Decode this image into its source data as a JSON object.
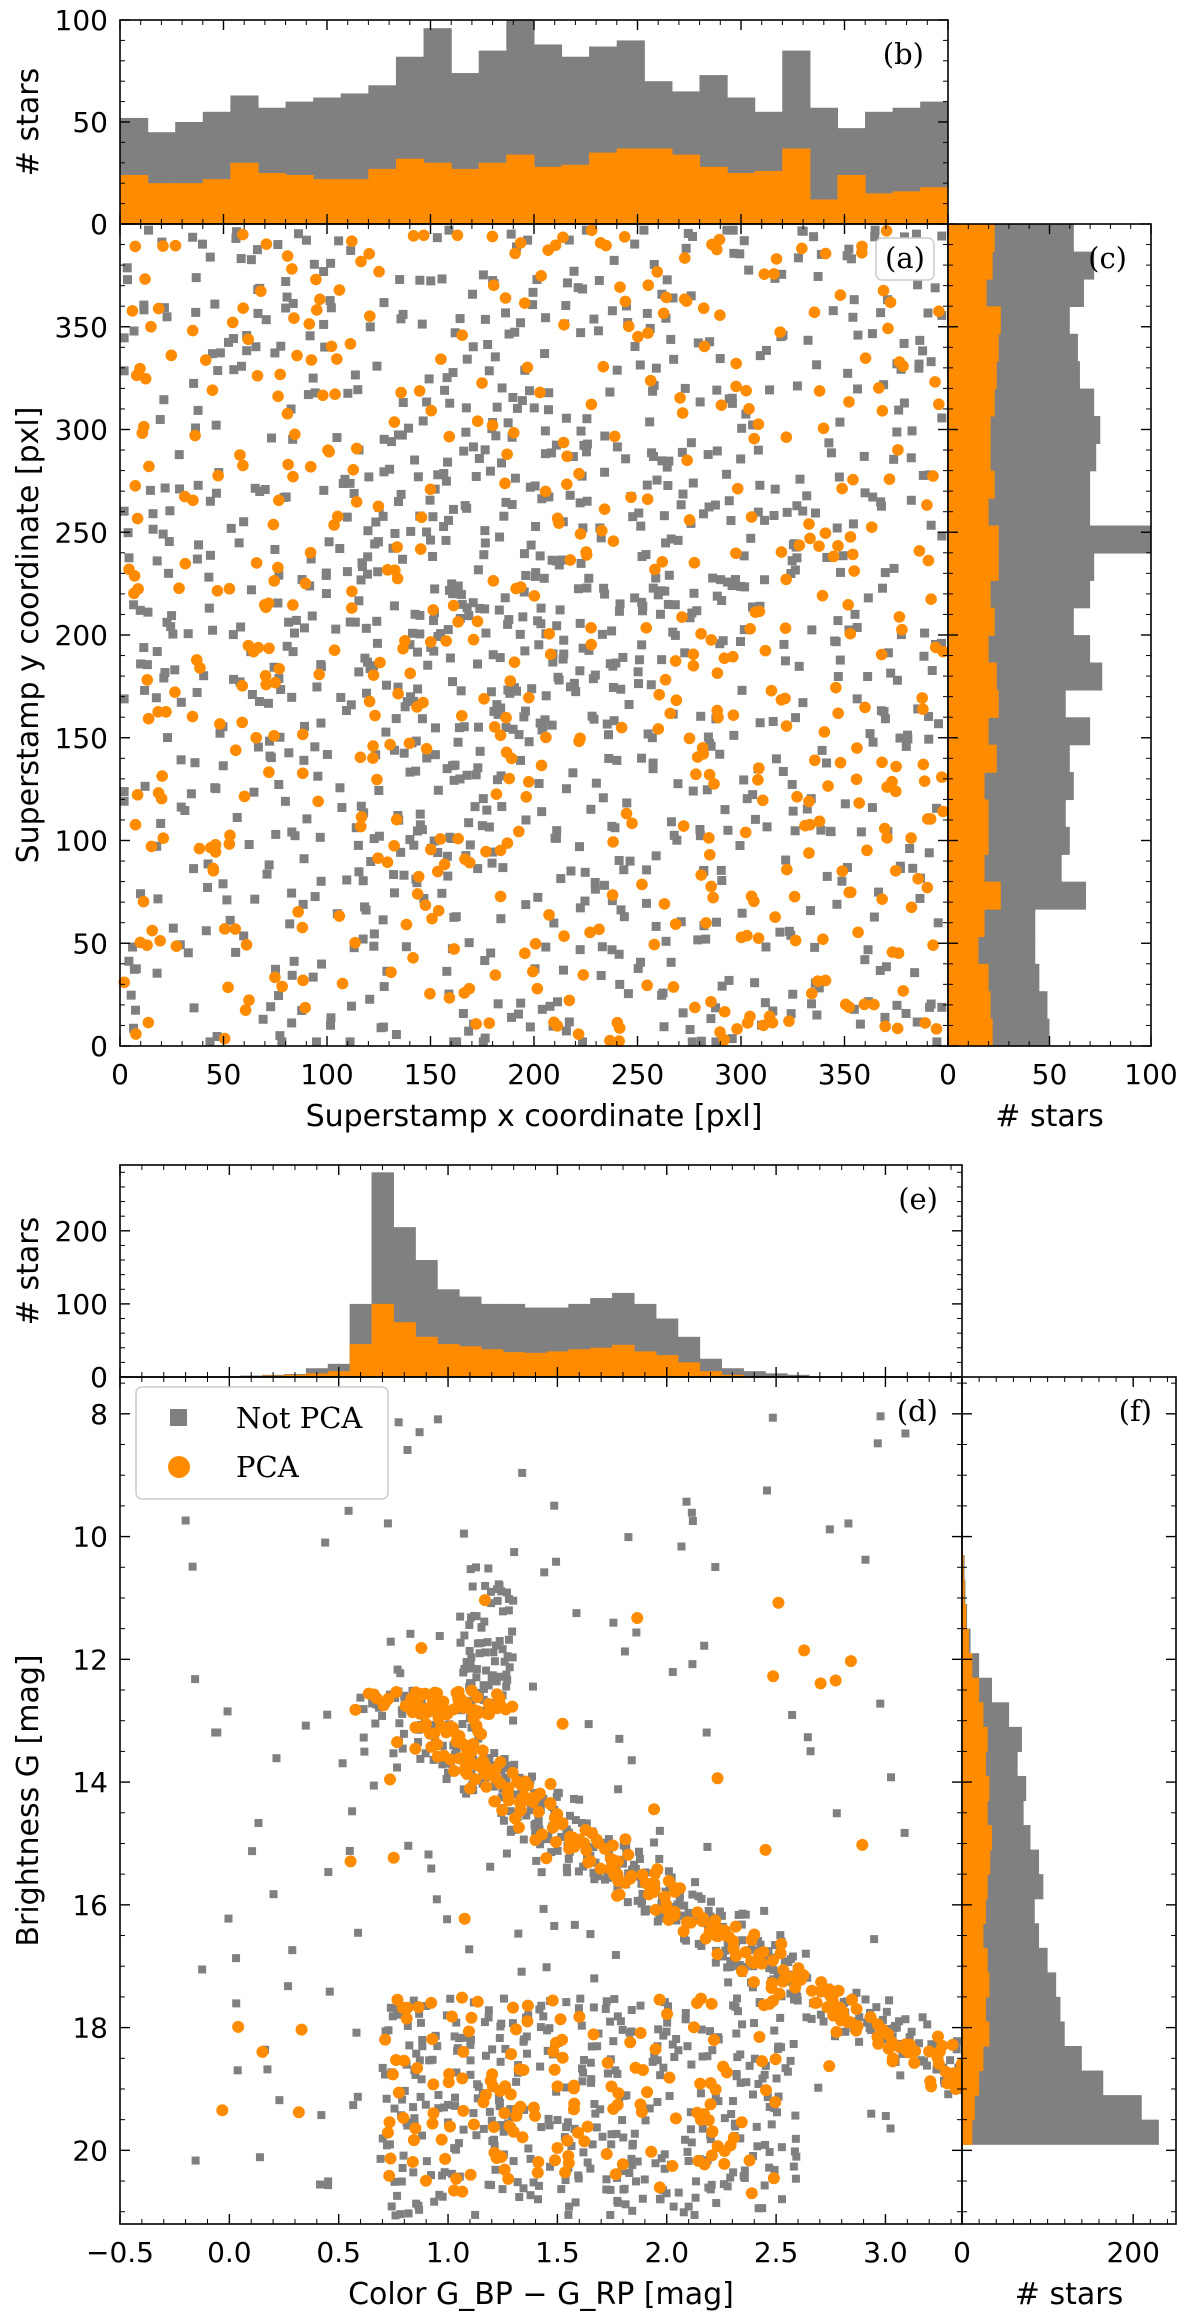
{
  "colors": {
    "not_pca": "#808080",
    "pca": "#ff8c00",
    "axis": "#000000",
    "legend_box": "#cccccc"
  },
  "legend": {
    "items": [
      "Not PCA",
      "PCA"
    ]
  },
  "chart_data": [
    {
      "id": "a",
      "panel_label": "(a)",
      "type": "scatter",
      "xlabel": "Superstamp x coordinate [pxl]",
      "ylabel": "Superstamp y coordinate [pxl]",
      "xlim": [
        0,
        400
      ],
      "ylim": [
        0,
        400
      ],
      "xticks": [
        "0",
        "50",
        "100",
        "150",
        "200",
        "250",
        "300",
        "350"
      ],
      "yticks": [
        "0",
        "50",
        "100",
        "150",
        "200",
        "250",
        "300",
        "350"
      ],
      "series": [
        {
          "name": "Not PCA",
          "marker": "square",
          "count": 1117
        },
        {
          "name": "PCA",
          "marker": "circle",
          "count": 545
        }
      ]
    },
    {
      "id": "b",
      "panel_label": "(b)",
      "type": "histogram",
      "orientation": "vertical",
      "shared_axis": "x of (a)",
      "ylabel": "# stars",
      "ylim": [
        0,
        100
      ],
      "yticks": [
        "0",
        "50",
        "100"
      ],
      "bin_edges_start": 0,
      "bin_width": 13.33,
      "series": [
        {
          "name": "Not PCA",
          "values": [
            52,
            45,
            50,
            55,
            63,
            57,
            60,
            62,
            64,
            68,
            82,
            96,
            74,
            85,
            100,
            88,
            82,
            87,
            90,
            70,
            65,
            73,
            62,
            55,
            85,
            57,
            47,
            55,
            57,
            60
          ]
        },
        {
          "name": "PCA",
          "values": [
            24,
            20,
            20,
            22,
            30,
            25,
            24,
            22,
            22,
            27,
            32,
            30,
            27,
            30,
            34,
            28,
            29,
            35,
            37,
            37,
            34,
            28,
            25,
            26,
            37,
            12,
            24,
            15,
            16,
            18
          ]
        }
      ]
    },
    {
      "id": "c",
      "panel_label": "(c)",
      "type": "histogram",
      "orientation": "horizontal",
      "shared_axis": "y of (a)",
      "xlabel": "# stars",
      "xlim": [
        0,
        100
      ],
      "xticks": [
        "0",
        "50",
        "100"
      ],
      "bin_edges_start": 0,
      "bin_width": 13.33,
      "series": [
        {
          "name": "Not PCA",
          "values": [
            50,
            49,
            45,
            43,
            43,
            68,
            56,
            60,
            58,
            62,
            60,
            70,
            58,
            76,
            70,
            62,
            70,
            72,
            100,
            70,
            70,
            73,
            75,
            72,
            65,
            64,
            60,
            67,
            72,
            62
          ]
        },
        {
          "name": "PCA",
          "values": [
            22,
            21,
            20,
            15,
            18,
            26,
            18,
            20,
            20,
            18,
            24,
            20,
            25,
            24,
            20,
            23,
            21,
            25,
            25,
            20,
            23,
            21,
            21,
            23,
            24,
            25,
            26,
            19,
            22,
            23
          ]
        }
      ]
    },
    {
      "id": "d",
      "panel_label": "(d)",
      "type": "scatter",
      "xlabel": "Color G_BP − G_RP [mag]",
      "ylabel": "Brightness G [mag]",
      "xlim": [
        -0.5,
        3.35
      ],
      "ylim": [
        21.2,
        7.4
      ],
      "xticks": [
        "−0.5",
        "0.0",
        "0.5",
        "1.0",
        "1.5",
        "2.0",
        "2.5",
        "3.0"
      ],
      "yticks": [
        "8",
        "10",
        "12",
        "14",
        "16",
        "18",
        "20"
      ],
      "series": [
        {
          "name": "Not PCA",
          "marker": "square",
          "count": 1117
        },
        {
          "name": "PCA",
          "marker": "circle",
          "count": 545
        }
      ]
    },
    {
      "id": "e",
      "panel_label": "(e)",
      "type": "histogram",
      "orientation": "vertical",
      "shared_axis": "x of (d)",
      "ylabel": "# stars",
      "ylim": [
        0,
        290
      ],
      "yticks": [
        "0",
        "100",
        "200"
      ],
      "bin_edges_start": -0.15,
      "bin_width": 0.1,
      "series": [
        {
          "name": "Not PCA",
          "values": [
            1,
            1,
            2,
            3,
            4,
            12,
            18,
            100,
            280,
            205,
            160,
            120,
            110,
            100,
            100,
            95,
            95,
            100,
            108,
            115,
            100,
            80,
            55,
            25,
            12,
            8,
            5,
            3
          ]
        },
        {
          "name": "PCA",
          "values": [
            0,
            1,
            1,
            2,
            3,
            5,
            8,
            45,
            100,
            75,
            55,
            45,
            42,
            38,
            34,
            33,
            35,
            38,
            40,
            44,
            35,
            30,
            20,
            8,
            3,
            1,
            0,
            0
          ]
        }
      ]
    },
    {
      "id": "f",
      "panel_label": "(f)",
      "type": "histogram",
      "orientation": "horizontal",
      "shared_axis": "y of (d)",
      "xlabel": "# stars",
      "xlim": [
        0,
        250
      ],
      "xticks": [
        "0",
        "200"
      ],
      "bin_edges_start": 10.3,
      "bin_width": 0.4,
      "series": [
        {
          "name": "Not PCA",
          "values": [
            3,
            4,
            6,
            10,
            20,
            35,
            55,
            70,
            65,
            75,
            72,
            80,
            90,
            95,
            85,
            90,
            100,
            110,
            115,
            120,
            140,
            165,
            210,
            230
          ]
        },
        {
          "name": "PCA",
          "values": [
            2,
            3,
            5,
            8,
            12,
            20,
            25,
            30,
            28,
            32,
            30,
            35,
            33,
            30,
            28,
            25,
            30,
            32,
            28,
            32,
            25,
            20,
            15,
            12
          ]
        }
      ]
    }
  ]
}
